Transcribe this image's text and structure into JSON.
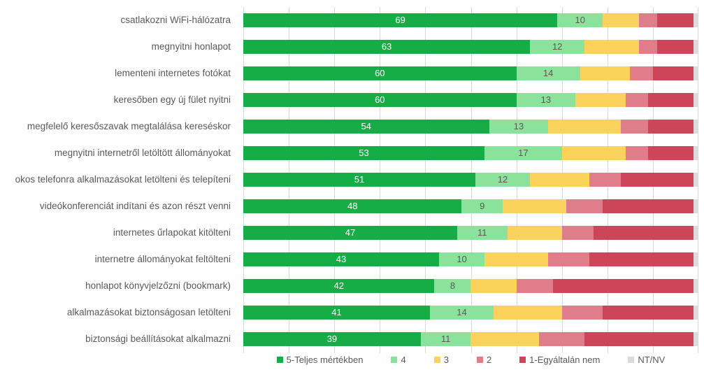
{
  "chart_data": {
    "type": "bar",
    "orientation": "horizontal",
    "stacked": true,
    "unit": "percent",
    "title": "",
    "xlabel": "",
    "ylabel": "",
    "xlim": [
      0,
      100
    ],
    "grid": true,
    "gridline_step": 10,
    "legend_position": "bottom",
    "value_labels_shown_for": [
      "5-Teljes mértékben",
      "4"
    ],
    "categories": [
      "csatlakozni WiFi-hálózatra",
      "megnyitni honlapot",
      "lementeni internetes fotókat",
      "keresőben egy új fület nyitni",
      "megfelelő keresőszavak megtalálása kereséskor",
      "megnyitni internetről letöltött állományokat",
      "okos telefonra alkalmazásokat letölteni és telepíteni",
      "videókonferenciát indítani és azon részt venni",
      "internetes űrlapokat kitölteni",
      "internetre állományokat feltölteni",
      "honlapot könyvjelzőzni (bookmark)",
      "alkalmazásokat biztonságosan letölteni",
      "biztonsági beállításokat alkalmazni"
    ],
    "series": [
      {
        "name": "5-Teljes mértékben",
        "values": [
          69,
          63,
          60,
          60,
          54,
          53,
          51,
          48,
          47,
          43,
          42,
          41,
          39
        ]
      },
      {
        "name": "4",
        "values": [
          10,
          12,
          14,
          13,
          13,
          17,
          12,
          9,
          11,
          10,
          8,
          14,
          11
        ]
      },
      {
        "name": "3",
        "values": [
          8,
          12,
          11,
          11,
          16,
          14,
          13,
          14,
          12,
          14,
          10,
          15,
          15
        ]
      },
      {
        "name": "2",
        "values": [
          4,
          4,
          5,
          5,
          6,
          5,
          7,
          8,
          7,
          9,
          8,
          9,
          10
        ]
      },
      {
        "name": "1-Egyáltalán nem",
        "values": [
          8,
          8,
          9,
          10,
          10,
          10,
          16,
          20,
          22,
          23,
          31,
          20,
          24
        ]
      },
      {
        "name": "NT/NV",
        "values": [
          1,
          1,
          1,
          1,
          1,
          1,
          1,
          1,
          1,
          1,
          1,
          1,
          1
        ]
      }
    ]
  },
  "legend": {
    "items": [
      {
        "label": "5-Teljes mértékben",
        "color": "#16AC46"
      },
      {
        "label": "4",
        "color": "#8BE29B"
      },
      {
        "label": "3",
        "color": "#FBD25B"
      },
      {
        "label": "2",
        "color": "#DF7E8A"
      },
      {
        "label": "1-Egyáltalán nem",
        "color": "#CC4558"
      },
      {
        "label": "NT/NV",
        "color": "#DBDBDB"
      }
    ]
  },
  "colors": {
    "series": [
      "#16AC46",
      "#8BE29B",
      "#FBD25B",
      "#DF7E8A",
      "#CC4558",
      "#DBDBDB"
    ],
    "category_label": "#595959",
    "value_label_on_green": "#FFFFFF",
    "value_label_on_lightgreen": "#595959",
    "gridline": "#D9D9D9",
    "background": "#FFFFFF"
  }
}
